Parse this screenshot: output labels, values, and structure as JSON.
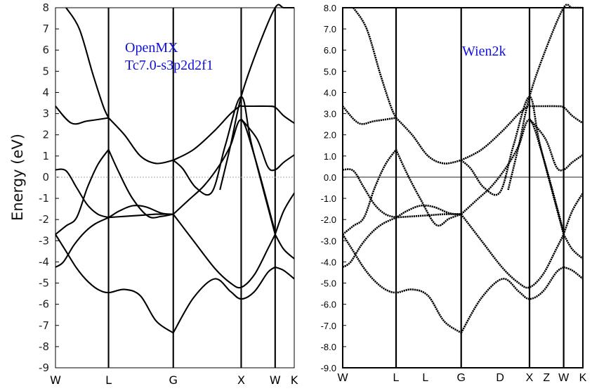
{
  "chart_data": [
    {
      "type": "line",
      "annotation": [
        "OpenMX",
        "Tc7.0-s3p2d2f1"
      ],
      "ylabel": "Energy (eV)",
      "ylim": [
        -9,
        8
      ],
      "yticks": [
        "8",
        "7",
        "6",
        "5",
        "4",
        "3",
        "2",
        "1",
        "0",
        "-1",
        "-2",
        "-3",
        "-4",
        "-5",
        "-6",
        "-7",
        "-8",
        "-9"
      ],
      "kpoints": [
        {
          "label": "W",
          "x": 0
        },
        {
          "label": "L",
          "x": 1
        },
        {
          "label": "G",
          "x": 2.22
        },
        {
          "label": "X",
          "x": 3.5
        },
        {
          "label": "W",
          "x": 4.14
        },
        {
          "label": "K",
          "x": 4.5
        }
      ],
      "fermi_level": 0,
      "series": [
        {
          "x": [
            0,
            0.15,
            0.35,
            0.55,
            0.75,
            1.0,
            1.2,
            1.45,
            1.7,
            2.0,
            2.22
          ],
          "values": [
            -4.25,
            -4.0,
            -3.2,
            -2.6,
            -2.2,
            -1.9,
            -1.6,
            -1.35,
            -1.4,
            -1.7,
            -1.75
          ]
        },
        {
          "x": [
            0,
            0.2,
            0.4,
            0.6,
            0.8,
            1.0,
            1.3,
            1.6,
            1.9,
            2.22
          ],
          "values": [
            -2.7,
            -3.5,
            -4.3,
            -4.9,
            -5.3,
            -5.45,
            -5.3,
            -5.6,
            -6.8,
            -7.35
          ]
        },
        {
          "x": [
            0,
            0.2,
            0.4,
            0.6,
            0.8,
            1.0
          ],
          "values": [
            -2.7,
            -2.3,
            -1.9,
            -0.5,
            0.6,
            1.3
          ]
        },
        {
          "x": [
            0,
            0.2,
            0.4,
            0.6,
            0.8,
            1.0
          ],
          "values": [
            0.35,
            0.3,
            -0.5,
            -1.3,
            -1.75,
            -1.9
          ]
        },
        {
          "x": [
            0,
            0.3,
            0.6,
            1.0
          ],
          "values": [
            3.35,
            2.55,
            2.65,
            2.8
          ]
        },
        {
          "x": [
            0.2,
            0.45,
            0.7,
            0.9,
            1.0
          ],
          "values": [
            8,
            7.0,
            4.9,
            3.35,
            2.8
          ]
        },
        {
          "x": [
            1.0,
            1.3,
            1.6,
            1.9,
            2.22
          ],
          "values": [
            2.8,
            2.0,
            1.0,
            0.65,
            0.8
          ]
        },
        {
          "x": [
            1.0,
            1.2,
            1.45,
            1.75,
            2.0,
            2.22
          ],
          "values": [
            1.3,
            0.2,
            -1.0,
            -1.85,
            -1.85,
            -1.75
          ]
        },
        {
          "x": [
            1.0,
            1.3,
            1.6,
            1.9,
            2.22
          ],
          "values": [
            -1.9,
            -1.85,
            -1.8,
            -1.75,
            -1.75
          ]
        },
        {
          "x": [
            2.22,
            2.6,
            3.0,
            3.3,
            3.5,
            3.75,
            4.0,
            4.14
          ],
          "values": [
            -7.35,
            -5.7,
            -4.8,
            -5.4,
            -5.75,
            -5.4,
            -4.5,
            -4.25
          ]
        },
        {
          "x": [
            2.22,
            2.6,
            3.0,
            3.3,
            3.5,
            3.75,
            4.0,
            4.14
          ],
          "values": [
            -1.75,
            -3.0,
            -4.3,
            -5.0,
            -5.2,
            -4.6,
            -3.4,
            -2.7
          ]
        },
        {
          "x": [
            2.22,
            2.5,
            2.8,
            3.1,
            3.3,
            3.5,
            3.75,
            4.14
          ],
          "values": [
            -1.75,
            -1.1,
            -0.4,
            0.6,
            1.5,
            2.7,
            1.0,
            -2.6
          ]
        },
        {
          "x": [
            2.22,
            2.4,
            2.65,
            2.95,
            3.2,
            3.5,
            3.7,
            4.14
          ],
          "values": [
            0.8,
            0.4,
            -0.5,
            -0.7,
            1.5,
            3.8,
            1.5,
            -2.7
          ]
        },
        {
          "x": [
            2.22,
            2.6,
            3.0,
            3.3,
            3.5
          ],
          "values": [
            0.8,
            1.3,
            2.2,
            3.0,
            3.4
          ]
        },
        {
          "x": [
            3.1,
            3.3,
            3.5,
            3.8,
            4.14,
            4.3,
            4.5
          ],
          "values": [
            -0.6,
            1.5,
            3.8,
            6.0,
            8,
            8,
            8
          ]
        },
        {
          "x": [
            3.5,
            3.75,
            4.0,
            4.14,
            4.3,
            4.5
          ],
          "values": [
            3.35,
            3.35,
            3.35,
            3.3,
            2.9,
            2.55
          ]
        },
        {
          "x": [
            3.5,
            3.8,
            4.0,
            4.14,
            4.3,
            4.5
          ],
          "values": [
            2.75,
            1.8,
            0.5,
            0.35,
            0.7,
            1.05
          ]
        },
        {
          "x": [
            4.14,
            4.3,
            4.5
          ],
          "values": [
            -2.7,
            -1.6,
            -0.75
          ]
        },
        {
          "x": [
            4.14,
            4.3,
            4.5
          ],
          "values": [
            -2.7,
            -3.4,
            -3.85
          ]
        },
        {
          "x": [
            4.14,
            4.3,
            4.5
          ],
          "values": [
            -4.25,
            -4.4,
            -4.8
          ]
        }
      ]
    },
    {
      "type": "line",
      "annotation": [
        "Wien2k"
      ],
      "ylim": [
        -9,
        8
      ],
      "yticks": [
        "8.0",
        "7.0",
        "6.0",
        "5.0",
        "4.0",
        "3.0",
        "2.0",
        "1.0",
        "0.0",
        "-1.0",
        "-2.0",
        "-3.0",
        "-4.0",
        "-5.0",
        "-6.0",
        "-7.0",
        "-8.0",
        "-9.0"
      ],
      "kpoints": [
        {
          "label": "W",
          "x": 0
        },
        {
          "label": "L",
          "x": 1
        },
        {
          "label": "L",
          "x": 1.55
        },
        {
          "label": "G",
          "x": 2.22
        },
        {
          "label": "D",
          "x": 2.95
        },
        {
          "label": "X",
          "x": 3.5
        },
        {
          "label": "Z",
          "x": 3.82
        },
        {
          "label": "W",
          "x": 4.14
        },
        {
          "label": "K",
          "x": 4.5
        }
      ],
      "gridlines_at": [
        0,
        1,
        2.22,
        3.5,
        4.14,
        4.5
      ],
      "fermi_level": 0,
      "series": [
        {
          "x": [
            0,
            0.15,
            0.35,
            0.55,
            0.75,
            1.0,
            1.2,
            1.45,
            1.7,
            2.0,
            2.22
          ],
          "values": [
            -4.25,
            -4.0,
            -3.2,
            -2.6,
            -2.2,
            -1.9,
            -1.6,
            -1.35,
            -1.4,
            -1.7,
            -1.75
          ]
        },
        {
          "x": [
            0,
            0.2,
            0.4,
            0.6,
            0.8,
            1.0,
            1.3,
            1.6,
            1.9,
            2.22
          ],
          "values": [
            -2.7,
            -3.5,
            -4.3,
            -4.9,
            -5.3,
            -5.45,
            -5.3,
            -5.6,
            -6.8,
            -7.35
          ]
        },
        {
          "x": [
            0,
            0.2,
            0.4,
            0.6,
            0.8,
            1.0
          ],
          "values": [
            -2.7,
            -2.3,
            -1.9,
            -0.5,
            0.6,
            1.3
          ]
        },
        {
          "x": [
            0,
            0.2,
            0.4,
            0.6,
            0.8,
            1.0
          ],
          "values": [
            0.35,
            0.3,
            -0.5,
            -1.3,
            -1.75,
            -1.9
          ]
        },
        {
          "x": [
            0,
            0.3,
            0.6,
            1.0
          ],
          "values": [
            3.35,
            2.55,
            2.65,
            2.8
          ]
        },
        {
          "x": [
            0.2,
            0.45,
            0.7,
            0.9,
            1.0
          ],
          "values": [
            8,
            7.0,
            4.9,
            3.35,
            2.8
          ]
        },
        {
          "x": [
            1.0,
            1.3,
            1.6,
            1.9,
            2.22
          ],
          "values": [
            2.8,
            2.0,
            1.0,
            0.65,
            0.8
          ]
        },
        {
          "x": [
            1.0,
            1.2,
            1.45,
            1.75,
            2.0,
            2.22
          ],
          "values": [
            1.3,
            0.2,
            -1.0,
            -2.25,
            -1.95,
            -1.75
          ]
        },
        {
          "x": [
            1.0,
            1.3,
            1.6,
            1.9,
            2.22
          ],
          "values": [
            -1.9,
            -1.85,
            -1.8,
            -1.75,
            -1.75
          ]
        },
        {
          "x": [
            2.22,
            2.6,
            3.0,
            3.3,
            3.5,
            3.75,
            4.0,
            4.14
          ],
          "values": [
            -7.35,
            -5.7,
            -4.8,
            -5.4,
            -5.75,
            -5.4,
            -4.5,
            -4.25
          ]
        },
        {
          "x": [
            2.22,
            2.6,
            3.0,
            3.3,
            3.5,
            3.75,
            4.0,
            4.14
          ],
          "values": [
            -1.75,
            -3.0,
            -4.3,
            -5.0,
            -5.2,
            -4.6,
            -3.4,
            -2.7
          ]
        },
        {
          "x": [
            2.22,
            2.5,
            2.8,
            3.1,
            3.3,
            3.5,
            3.75,
            4.14
          ],
          "values": [
            -1.75,
            -1.1,
            -0.4,
            0.6,
            1.5,
            2.7,
            1.0,
            -2.6
          ]
        },
        {
          "x": [
            2.22,
            2.4,
            2.65,
            2.95,
            3.2,
            3.5,
            3.7,
            4.14
          ],
          "values": [
            0.8,
            0.4,
            -0.5,
            -0.7,
            1.5,
            3.8,
            1.5,
            -2.7
          ]
        },
        {
          "x": [
            2.22,
            2.6,
            3.0,
            3.3,
            3.5
          ],
          "values": [
            0.8,
            1.3,
            2.2,
            3.0,
            3.4
          ]
        },
        {
          "x": [
            3.1,
            3.3,
            3.5,
            3.8,
            4.14,
            4.3,
            4.5
          ],
          "values": [
            -0.6,
            1.5,
            3.8,
            6.0,
            8,
            8,
            8
          ]
        },
        {
          "x": [
            3.5,
            3.75,
            4.0,
            4.14,
            4.3,
            4.5
          ],
          "values": [
            3.35,
            3.35,
            3.35,
            3.3,
            2.9,
            2.55
          ]
        },
        {
          "x": [
            3.5,
            3.8,
            4.0,
            4.14,
            4.3,
            4.5
          ],
          "values": [
            2.75,
            1.8,
            0.5,
            0.35,
            0.7,
            1.05
          ]
        },
        {
          "x": [
            4.14,
            4.3,
            4.5
          ],
          "values": [
            -2.7,
            -1.6,
            -0.75
          ]
        },
        {
          "x": [
            4.14,
            4.3,
            4.5
          ],
          "values": [
            -2.7,
            -3.4,
            -3.85
          ]
        },
        {
          "x": [
            4.14,
            4.3,
            4.5
          ],
          "values": [
            -4.25,
            -4.4,
            -4.8
          ]
        }
      ]
    }
  ]
}
